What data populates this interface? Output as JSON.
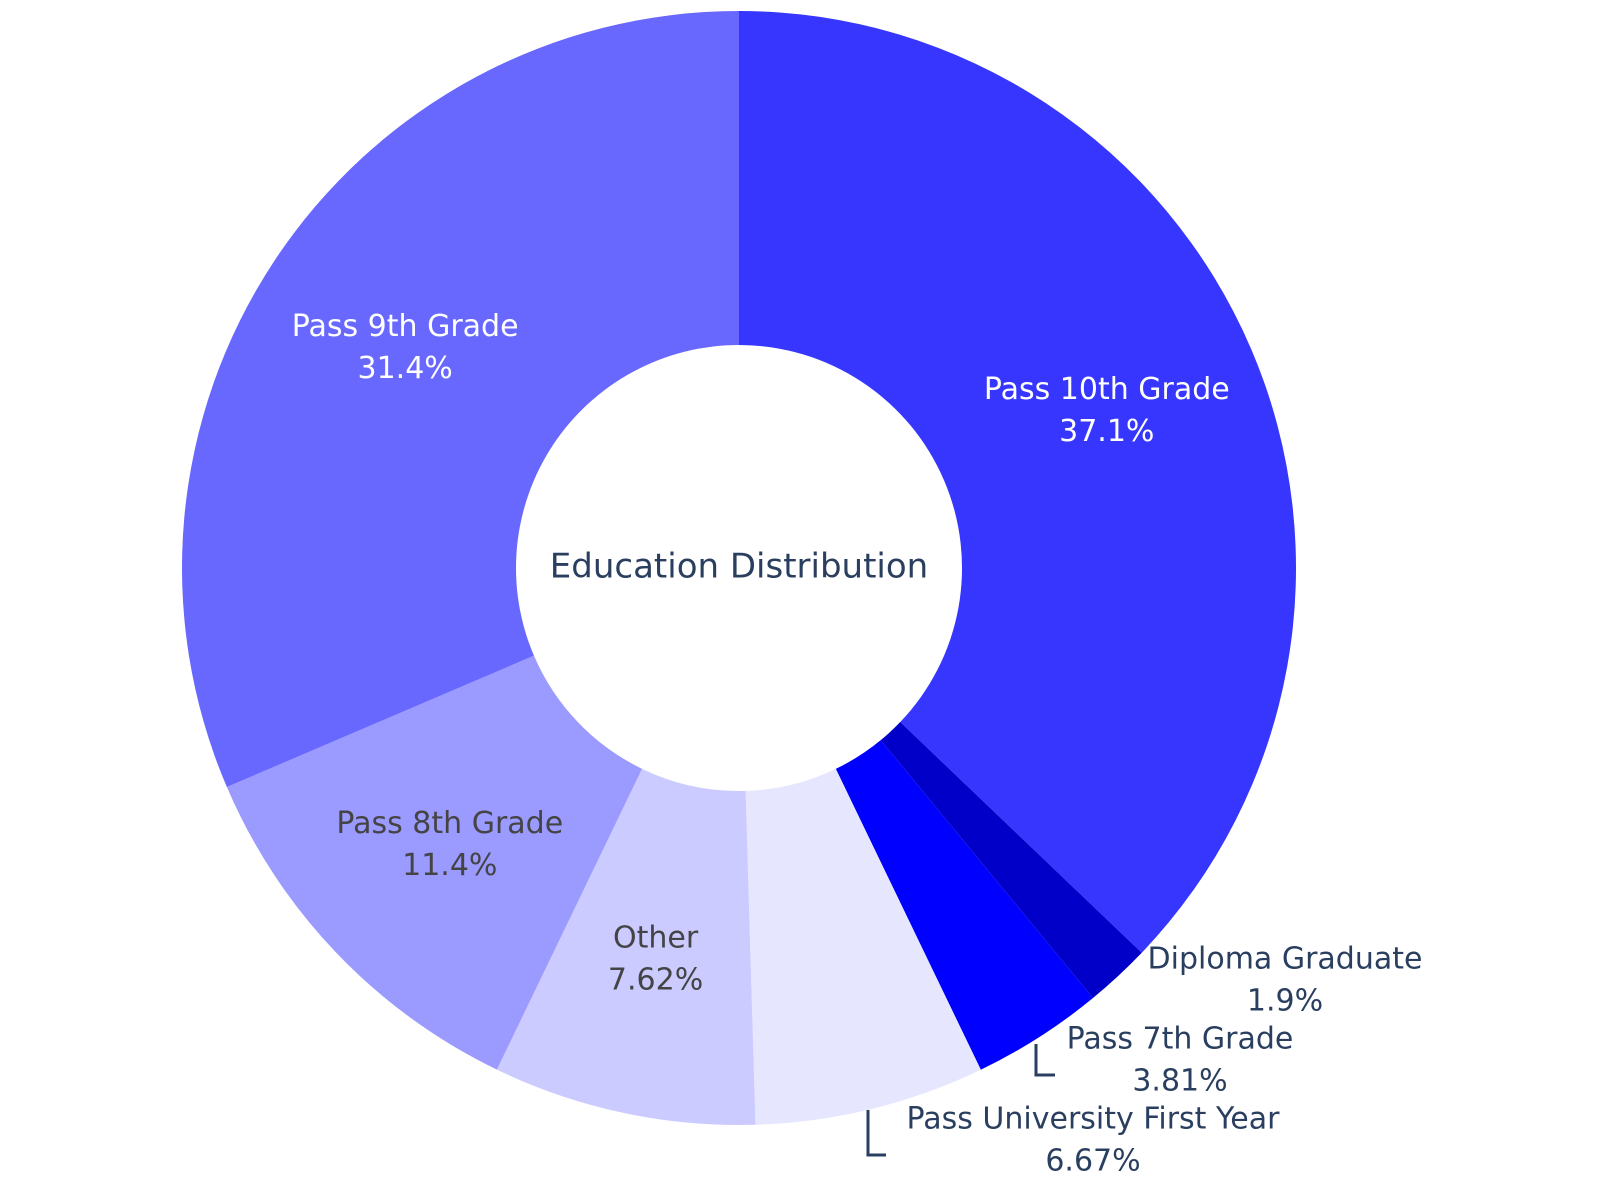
{
  "chart_data": {
    "type": "pie",
    "hole": true,
    "title": "Education Distribution",
    "slices": [
      {
        "label": "Pass 10th Grade",
        "percent_text": "37.1%",
        "value": 37.1,
        "color": "#3636ff",
        "text_color": "#ffffff"
      },
      {
        "label": "Diploma Graduate",
        "percent_text": "1.9%",
        "value": 1.9,
        "color": "#0000c8",
        "text_color": "#2a3f5f"
      },
      {
        "label": "Pass 7th Grade",
        "percent_text": "3.81%",
        "value": 3.81,
        "color": "#0000ff",
        "text_color": "#2a3f5f"
      },
      {
        "label": "Pass University First Year",
        "percent_text": "6.67%",
        "value": 6.67,
        "color": "#e6e6ff",
        "text_color": "#2a3f5f"
      },
      {
        "label": "Other",
        "percent_text": "7.62%",
        "value": 7.62,
        "color": "#cbcbff",
        "text_color": "#444444"
      },
      {
        "label": "Pass 8th Grade",
        "percent_text": "11.4%",
        "value": 11.4,
        "color": "#9b9bff",
        "text_color": "#444444"
      },
      {
        "label": "Pass 9th Grade",
        "percent_text": "31.4%",
        "value": 31.4,
        "color": "#6868ff",
        "text_color": "#ffffff"
      }
    ]
  }
}
